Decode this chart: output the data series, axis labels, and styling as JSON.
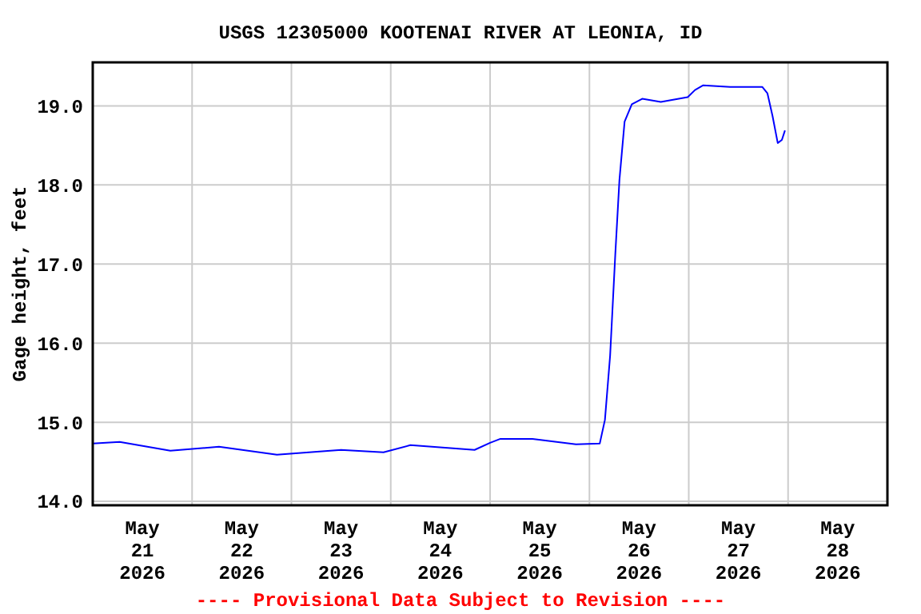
{
  "chart_data": {
    "type": "line",
    "title": "USGS 12305000 KOOTENAI RIVER AT LEONIA, ID",
    "ylabel": "Gage height, feet",
    "annotations": [
      "---- Provisional Data Subject to Revision ----"
    ],
    "x": [
      "2026-05-21T00:00",
      "2026-05-21T06:30",
      "2026-05-21T18:45",
      "2026-05-22T06:30",
      "2026-05-22T20:30",
      "2026-05-23T12:00",
      "2026-05-23T22:15",
      "2026-05-24T04:45",
      "2026-05-24T20:15",
      "2026-05-25T00:00",
      "2026-05-25T02:30",
      "2026-05-25T10:15",
      "2026-05-25T20:45",
      "2026-05-26T02:30",
      "2026-05-26T03:45",
      "2026-05-26T05:00",
      "2026-05-26T06:15",
      "2026-05-26T07:15",
      "2026-05-26T08:30",
      "2026-05-26T10:15",
      "2026-05-26T12:45",
      "2026-05-26T17:15",
      "2026-05-26T23:45",
      "2026-05-27T01:30",
      "2026-05-27T03:30",
      "2026-05-27T10:00",
      "2026-05-27T17:45",
      "2026-05-27T19:00",
      "2026-05-27T20:15",
      "2026-05-27T21:30",
      "2026-05-27T22:30",
      "2026-05-27T23:15"
    ],
    "series": [
      {
        "color": "#0000ff",
        "values": [
          14.73,
          14.75,
          14.64,
          14.69,
          14.59,
          14.65,
          14.62,
          14.71,
          14.65,
          14.74,
          14.79,
          14.79,
          14.72,
          14.73,
          15.03,
          15.84,
          17.12,
          18.06,
          18.8,
          19.02,
          19.09,
          19.05,
          19.11,
          19.2,
          19.26,
          19.24,
          19.24,
          19.16,
          18.87,
          18.53,
          18.57,
          18.69
        ]
      }
    ],
    "xlim": [
      "2026-05-21T00:00",
      "2026-05-29T00:00"
    ],
    "xticks": [
      {
        "value": "2026-05-21T12:00",
        "label": "May\n21\n2026"
      },
      {
        "value": "2026-05-22T00:00",
        "label": null
      },
      {
        "value": "2026-05-22T12:00",
        "label": "May\n22\n2026"
      },
      {
        "value": "2026-05-23T00:00",
        "label": null
      },
      {
        "value": "2026-05-23T12:00",
        "label": "May\n23\n2026"
      },
      {
        "value": "2026-05-24T00:00",
        "label": null
      },
      {
        "value": "2026-05-24T12:00",
        "label": "May\n24\n2026"
      },
      {
        "value": "2026-05-25T00:00",
        "label": null
      },
      {
        "value": "2026-05-25T12:00",
        "label": "May\n25\n2026"
      },
      {
        "value": "2026-05-26T00:00",
        "label": null
      },
      {
        "value": "2026-05-26T12:00",
        "label": "May\n26\n2026"
      },
      {
        "value": "2026-05-27T00:00",
        "label": null
      },
      {
        "value": "2026-05-27T12:00",
        "label": "May\n27\n2026"
      },
      {
        "value": "2026-05-28T00:00",
        "label": null
      },
      {
        "value": "2026-05-28T12:00",
        "label": "May\n28\n2026"
      }
    ],
    "ylim": [
      13.95,
      19.55
    ],
    "yticks": [
      {
        "value": 14,
        "label": "14.0"
      },
      {
        "value": 15,
        "label": "15.0"
      },
      {
        "value": 16,
        "label": "16.0"
      },
      {
        "value": 17,
        "label": "17.0"
      },
      {
        "value": 18,
        "label": "18.0"
      },
      {
        "value": 19,
        "label": "19.0"
      }
    ],
    "grid": true,
    "marker": "none",
    "line_style": "solid"
  }
}
